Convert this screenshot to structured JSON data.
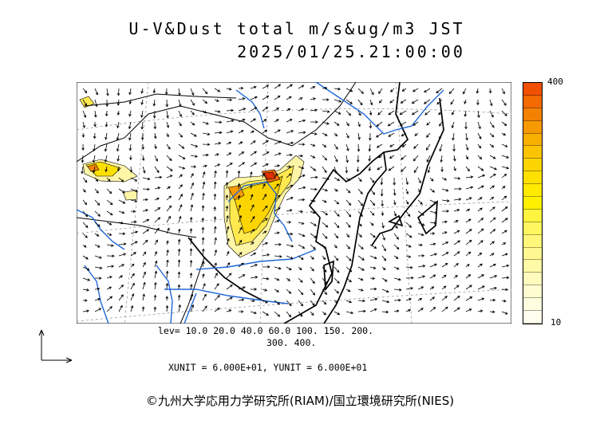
{
  "title": {
    "line1": "U-V&Dust total m/s&ug/m3 JST",
    "line2": "2025/01/25.21:00:00"
  },
  "colorbar": {
    "max_label": "400",
    "min_label": "10",
    "colors": [
      "#f05000",
      "#f26a00",
      "#f48200",
      "#f69a00",
      "#f8b000",
      "#fac400",
      "#fcd400",
      "#fde000",
      "#ffea00",
      "#fff000",
      "#fff440",
      "#fff660",
      "#fff77a",
      "#fff890",
      "#fffaa6",
      "#fffbbc",
      "#fffcd0",
      "#fffde0",
      "#fffeee"
    ]
  },
  "levels": {
    "line1": "lev= 10.0 20.0 40.0 60.0 100. 150. 200.",
    "line2": "300. 400."
  },
  "units": "XUNIT = 6.000E+01, YUNIT = 6.000E+01",
  "credit": "©九州大学応用力学研究所(RIAM)/国立環境研究所(NIES)"
}
